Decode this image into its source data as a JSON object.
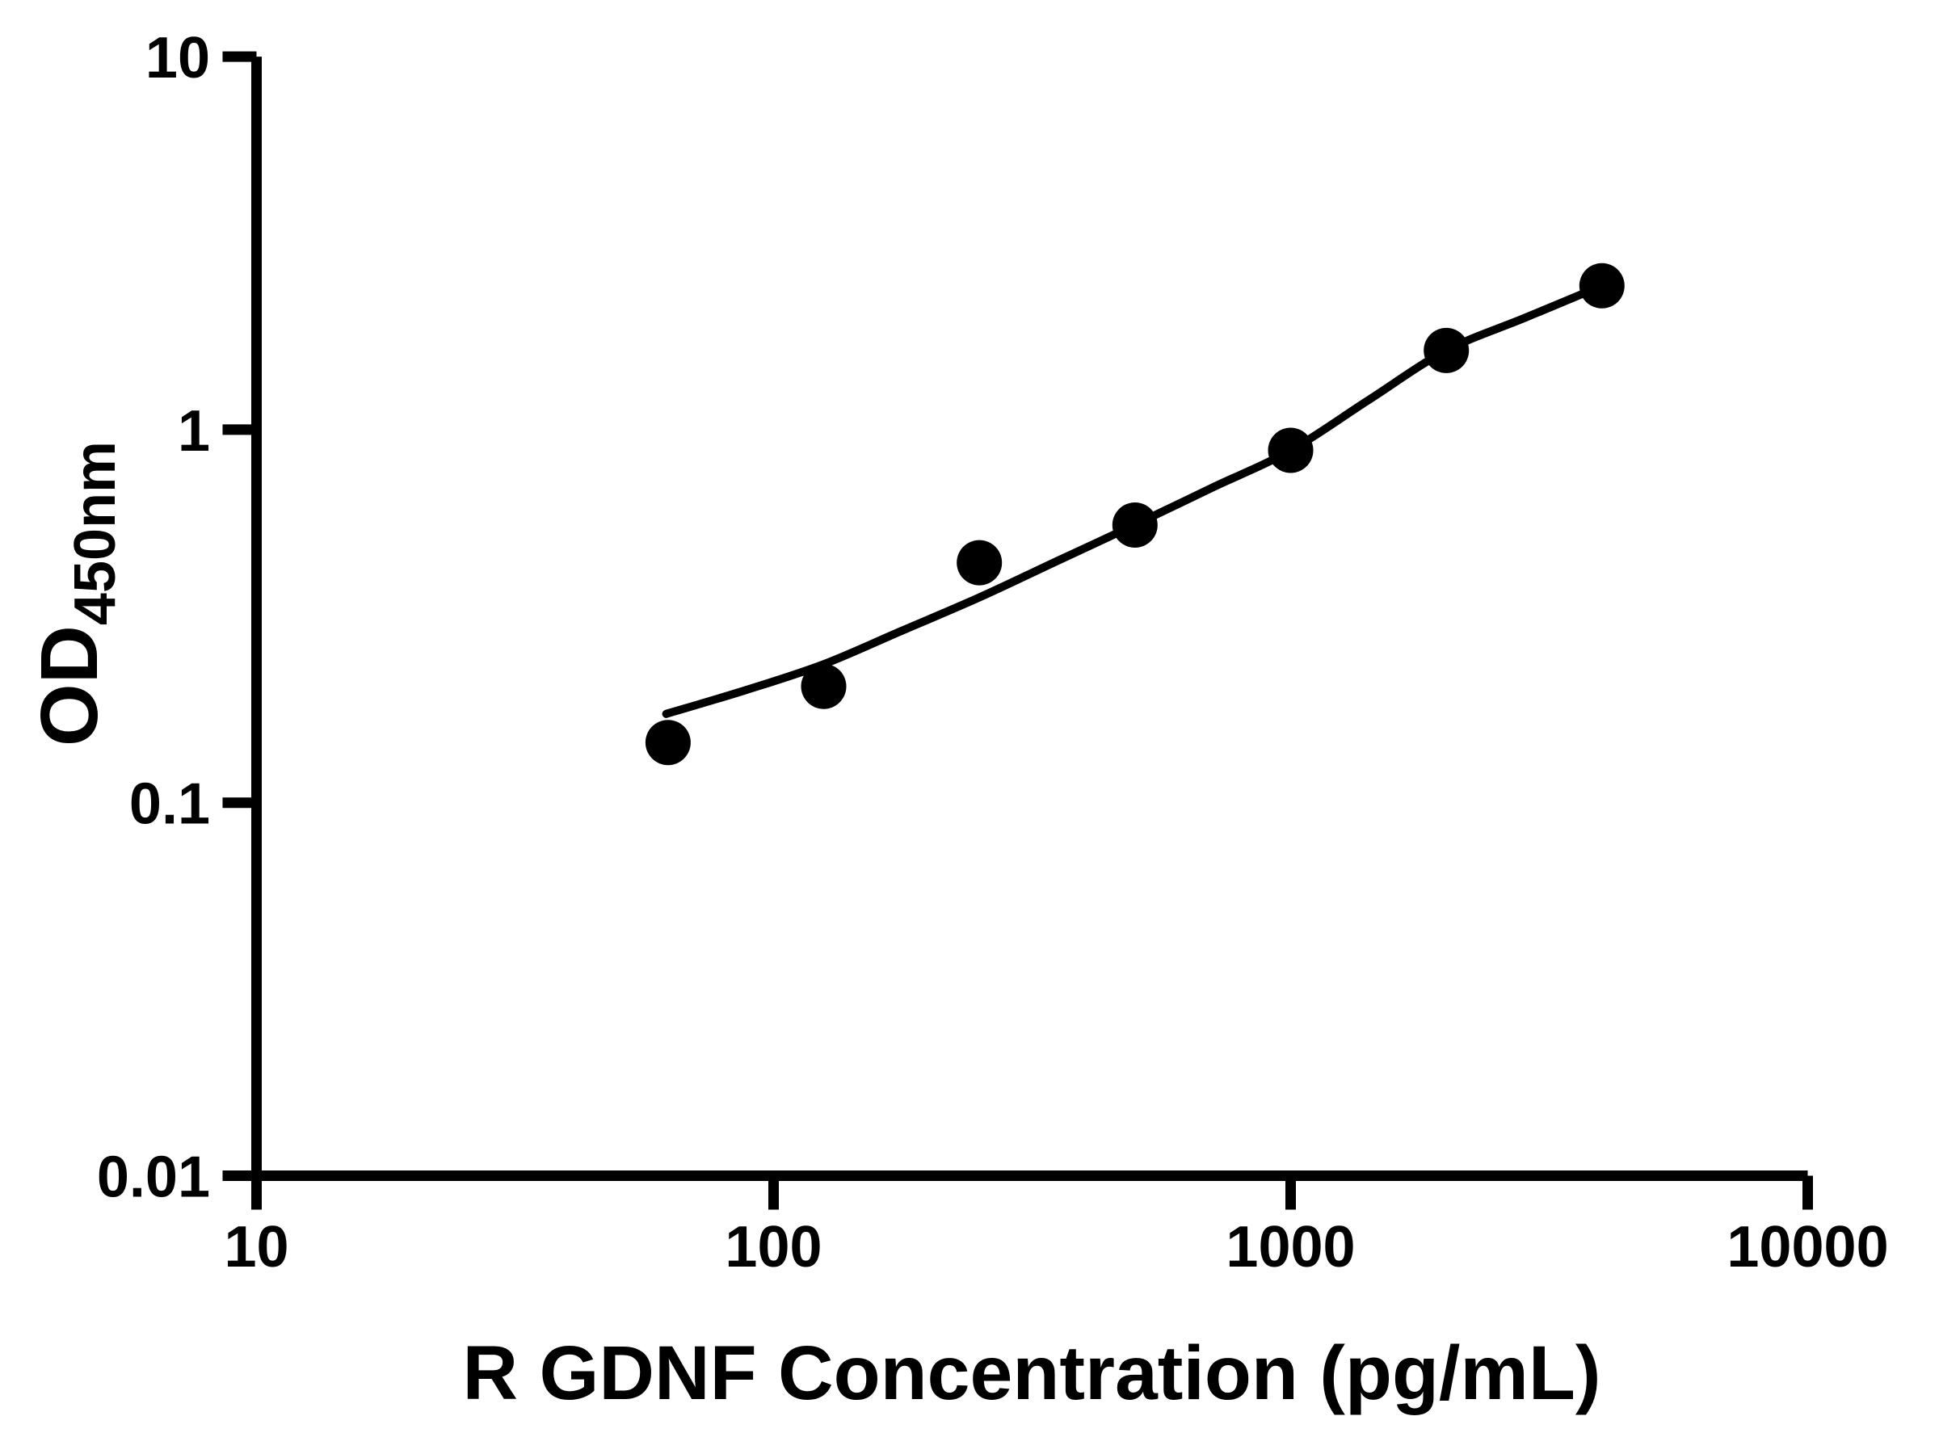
{
  "chart_data": {
    "type": "scatter",
    "title": "",
    "xlabel": "R GDNF Concentration (pg/mL)",
    "ylabel": "OD",
    "ylabel_subscript": "450nm",
    "x_scale": "log",
    "y_scale": "log",
    "xlim": [
      10,
      10000
    ],
    "ylim": [
      0.01,
      10
    ],
    "x_ticks": [
      10,
      100,
      1000,
      10000
    ],
    "x_tick_labels": [
      "10",
      "100",
      "1000",
      "10000"
    ],
    "y_ticks": [
      0.01,
      0.1,
      1,
      10
    ],
    "y_tick_labels": [
      "0.01",
      "0.1",
      "1",
      "10"
    ],
    "grid": false,
    "legend": null,
    "marker_color": "#000000",
    "curve_color": "#000000",
    "axis_color": "#000000",
    "background_color": "#ffffff",
    "series": [
      {
        "name": "standard-points",
        "type": "scatter",
        "marker": "circle",
        "points": [
          {
            "x": 62.5,
            "y": 0.145
          },
          {
            "x": 125,
            "y": 0.205
          },
          {
            "x": 250,
            "y": 0.44
          },
          {
            "x": 500,
            "y": 0.555
          },
          {
            "x": 1000,
            "y": 0.88
          },
          {
            "x": 2000,
            "y": 1.63
          },
          {
            "x": 4000,
            "y": 2.43
          }
        ]
      },
      {
        "name": "fit-curve",
        "type": "line",
        "points": [
          {
            "x": 62,
            "y": 0.173
          },
          {
            "x": 88,
            "y": 0.2
          },
          {
            "x": 125,
            "y": 0.235
          },
          {
            "x": 177,
            "y": 0.289
          },
          {
            "x": 250,
            "y": 0.355
          },
          {
            "x": 354,
            "y": 0.445
          },
          {
            "x": 500,
            "y": 0.556
          },
          {
            "x": 707,
            "y": 0.7
          },
          {
            "x": 1000,
            "y": 0.88
          },
          {
            "x": 1414,
            "y": 1.2
          },
          {
            "x": 2000,
            "y": 1.63
          },
          {
            "x": 2828,
            "y": 1.99
          },
          {
            "x": 4000,
            "y": 2.43
          }
        ]
      }
    ]
  }
}
